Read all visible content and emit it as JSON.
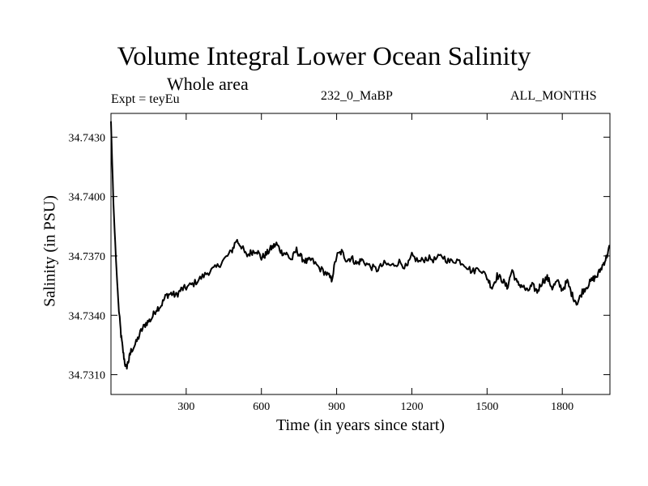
{
  "chart_data": {
    "type": "line",
    "title": "Volume Integral Lower Ocean Salinity",
    "subtitle": "Whole area",
    "experiment": "Expt = teyEu",
    "run_label": "232_0_MaBP",
    "period_label": "ALL_MONTHS",
    "xlabel": "Time (in years since start)",
    "ylabel": "Salinity (in PSU)",
    "xlim": [
      0,
      1990
    ],
    "ylim": [
      34.73,
      34.7442
    ],
    "xticks": [
      300,
      600,
      900,
      1200,
      1500,
      1800
    ],
    "xtick_labels": [
      "300",
      "600",
      "900",
      "1200",
      "1500",
      "1800"
    ],
    "yticks": [
      34.731,
      34.734,
      34.737,
      34.74,
      34.743
    ],
    "ytick_labels": [
      "34.7310",
      "34.7340",
      "34.7370",
      "34.7400",
      "34.7430"
    ],
    "series": [
      {
        "name": "Salinity",
        "color": "#000000",
        "x": [
          0,
          10,
          20,
          30,
          40,
          50,
          60,
          70,
          80,
          100,
          120,
          140,
          160,
          180,
          200,
          220,
          240,
          260,
          280,
          300,
          330,
          360,
          390,
          420,
          450,
          480,
          500,
          520,
          540,
          560,
          580,
          600,
          620,
          640,
          660,
          680,
          700,
          720,
          740,
          760,
          780,
          800,
          830,
          860,
          880,
          900,
          920,
          940,
          960,
          980,
          1000,
          1030,
          1060,
          1090,
          1120,
          1150,
          1180,
          1200,
          1230,
          1260,
          1290,
          1320,
          1350,
          1380,
          1410,
          1440,
          1470,
          1500,
          1520,
          1540,
          1560,
          1580,
          1600,
          1620,
          1640,
          1660,
          1680,
          1700,
          1720,
          1740,
          1760,
          1780,
          1800,
          1820,
          1840,
          1860,
          1880,
          1900,
          1920,
          1940,
          1960,
          1975,
          1990
        ],
        "values": [
          34.7438,
          34.7396,
          34.7368,
          34.7345,
          34.733,
          34.732,
          34.7313,
          34.7317,
          34.7322,
          34.7326,
          34.7332,
          34.7336,
          34.7338,
          34.7343,
          34.7345,
          34.735,
          34.7351,
          34.735,
          34.7353,
          34.7354,
          34.7356,
          34.7359,
          34.7362,
          34.7364,
          34.7368,
          34.7372,
          34.7378,
          34.7375,
          34.737,
          34.7372,
          34.7373,
          34.7369,
          34.7371,
          34.7374,
          34.7376,
          34.7372,
          34.7371,
          34.7368,
          34.7373,
          34.7369,
          34.7367,
          34.7368,
          34.7364,
          34.7361,
          34.7358,
          34.737,
          34.7372,
          34.7368,
          34.7369,
          34.7366,
          34.7368,
          34.7365,
          34.7363,
          34.7366,
          34.7365,
          34.7367,
          34.7364,
          34.737,
          34.7367,
          34.7369,
          34.7368,
          34.737,
          34.7367,
          34.7368,
          34.7366,
          34.7362,
          34.7364,
          34.7359,
          34.7354,
          34.736,
          34.7358,
          34.7354,
          34.7363,
          34.7356,
          34.7355,
          34.7352,
          34.7355,
          34.7352,
          34.7357,
          34.7359,
          34.7354,
          34.7357,
          34.7353,
          34.7357,
          34.735,
          34.7346,
          34.7352,
          34.7355,
          34.7358,
          34.736,
          34.7365,
          34.7369,
          34.7375
        ]
      }
    ]
  }
}
